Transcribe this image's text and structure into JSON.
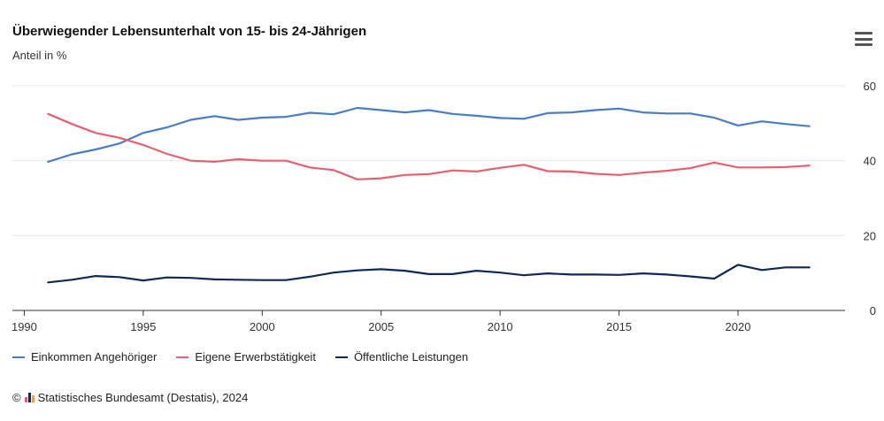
{
  "chart_data": {
    "type": "line",
    "title": "Überwiegender Lebensunterhalt von 15- bis 24-Jährigen",
    "subtitle": "Anteil in %",
    "xlabel": "",
    "ylabel": "",
    "xlim": [
      1989.5,
      2024.5
    ],
    "ylim": [
      0,
      60
    ],
    "x_ticks": [
      "1990",
      "1995",
      "2000",
      "2005",
      "2010",
      "2015",
      "2020"
    ],
    "y_ticks": [
      "0",
      "20",
      "40",
      "60"
    ],
    "grid": true,
    "legend_position": "bottom-left",
    "x": [
      1991,
      1992,
      1993,
      1994,
      1995,
      1996,
      1997,
      1998,
      1999,
      2000,
      2001,
      2002,
      2003,
      2004,
      2005,
      2006,
      2007,
      2008,
      2009,
      2010,
      2011,
      2012,
      2013,
      2014,
      2015,
      2016,
      2017,
      2018,
      2019,
      2020,
      2021,
      2022,
      2023
    ],
    "series": [
      {
        "name": "Einkommen Angehöriger",
        "color": "#4a7cc7",
        "values": [
          39.7,
          41.7,
          43.0,
          44.6,
          47.4,
          48.9,
          50.9,
          51.9,
          50.9,
          51.5,
          51.7,
          52.8,
          52.4,
          54.1,
          53.5,
          52.9,
          53.5,
          52.5,
          52.0,
          51.4,
          51.2,
          52.7,
          52.9,
          53.5,
          53.9,
          52.9,
          52.6,
          52.6,
          51.5,
          49.4,
          50.5,
          49.8,
          49.2
        ]
      },
      {
        "name": "Eigene Erwerbstätigkeit",
        "color": "#e8606f",
        "values": [
          52.5,
          49.8,
          47.4,
          46.1,
          44.2,
          41.8,
          40.0,
          39.7,
          40.4,
          40.0,
          40.0,
          38.2,
          37.5,
          35.0,
          35.3,
          36.2,
          36.4,
          37.4,
          37.1,
          38.1,
          38.9,
          37.2,
          37.1,
          36.5,
          36.2,
          36.8,
          37.3,
          38.0,
          39.5,
          38.2,
          38.2,
          38.3,
          38.7
        ]
      },
      {
        "name": "Öffentliche Leistungen",
        "color": "#0d2a55",
        "values": [
          7.5,
          8.2,
          9.2,
          8.9,
          8.0,
          8.8,
          8.7,
          8.3,
          8.2,
          8.1,
          8.1,
          9.0,
          10.1,
          10.7,
          11.0,
          10.6,
          9.7,
          9.7,
          10.6,
          10.1,
          9.4,
          9.9,
          9.6,
          9.6,
          9.5,
          9.9,
          9.6,
          9.1,
          8.5,
          12.2,
          10.8,
          11.5,
          11.5
        ]
      }
    ]
  },
  "footer": {
    "copyright": "©",
    "source": "Statistisches Bundesamt (Destatis), 2024"
  },
  "menu_icon": "hamburger-menu-icon"
}
